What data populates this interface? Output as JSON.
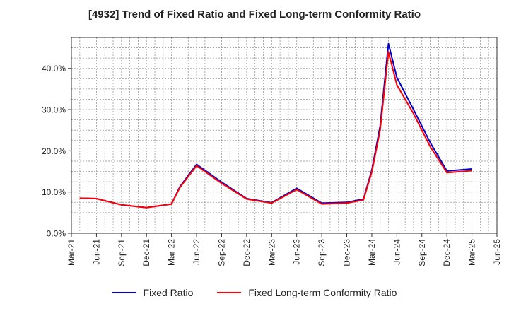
{
  "chart_data": {
    "type": "line",
    "title": "[4932]  Trend of Fixed Ratio and Fixed Long-term Conformity Ratio",
    "xlabel": "",
    "ylabel": "",
    "ylim": [
      0,
      47.5
    ],
    "yticks": [
      0,
      10,
      20,
      30,
      40
    ],
    "ytick_labels": [
      "0.0%",
      "10.0%",
      "20.0%",
      "30.0%",
      "40.0%"
    ],
    "x_tick_labels": [
      "Mar-21",
      "Jun-21",
      "Sep-21",
      "Dec-21",
      "Mar-22",
      "Jun-22",
      "Sep-22",
      "Dec-22",
      "Mar-23",
      "Jun-23",
      "Sep-23",
      "Dec-23",
      "Mar-24",
      "Jun-24",
      "Sep-24",
      "Dec-24",
      "Mar-25",
      "Jun-25"
    ],
    "x_range_months": [
      0,
      51
    ],
    "grid": true,
    "legend_position": "bottom",
    "series": [
      {
        "name": "Fixed Ratio",
        "color": "#0000cc",
        "x": [
          1,
          3,
          6,
          9,
          12,
          13,
          15,
          18,
          21,
          24,
          27,
          30,
          33,
          35,
          36,
          37,
          38,
          39,
          41,
          43,
          45,
          48
        ],
        "values": [
          8.5,
          8.4,
          6.9,
          6.2,
          7.1,
          11.3,
          16.7,
          12.4,
          8.4,
          7.4,
          10.9,
          7.3,
          7.5,
          8.3,
          15.3,
          26.0,
          46.0,
          37.8,
          30.0,
          22.0,
          15.1,
          15.6
        ]
      },
      {
        "name": "Fixed Long-term Conformity Ratio",
        "color": "#ff0000",
        "x": [
          1,
          3,
          6,
          9,
          12,
          13,
          15,
          18,
          21,
          24,
          27,
          30,
          33,
          35,
          36,
          37,
          38,
          39,
          41,
          43,
          45,
          48
        ],
        "values": [
          8.5,
          8.4,
          6.9,
          6.2,
          7.1,
          11.1,
          16.4,
          12.1,
          8.3,
          7.3,
          10.6,
          7.1,
          7.3,
          8.1,
          14.8,
          25.0,
          44.0,
          36.0,
          29.0,
          21.0,
          14.7,
          15.2
        ]
      }
    ]
  }
}
